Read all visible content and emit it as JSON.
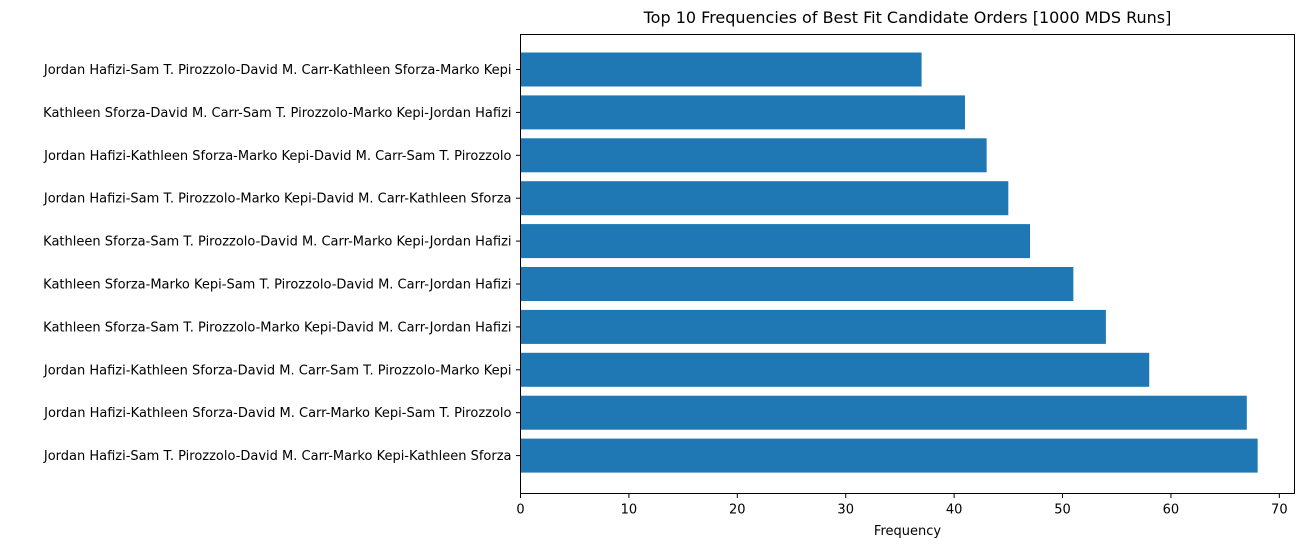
{
  "chart_data": {
    "type": "bar",
    "orientation": "horizontal",
    "title": "Top 10 Frequencies of Best Fit Candidate Orders [1000 MDS Runs]",
    "xlabel": "Frequency",
    "ylabel": "",
    "xlim": [
      0,
      71.4
    ],
    "x_ticks": [
      0,
      10,
      20,
      30,
      40,
      50,
      60,
      70
    ],
    "grid": false,
    "legend": "none",
    "bar_color": "#1f77b4",
    "categories": [
      "Jordan Hafizi-Sam T. Pirozzolo-David M. Carr-Kathleen Sforza-Marko Kepi",
      "Kathleen Sforza-David M. Carr-Sam T. Pirozzolo-Marko Kepi-Jordan Hafizi",
      "Jordan Hafizi-Kathleen Sforza-Marko Kepi-David M. Carr-Sam T. Pirozzolo",
      "Jordan Hafizi-Sam T. Pirozzolo-Marko Kepi-David M. Carr-Kathleen Sforza",
      "Kathleen Sforza-Sam T. Pirozzolo-David M. Carr-Marko Kepi-Jordan Hafizi",
      "Kathleen Sforza-Marko Kepi-Sam T. Pirozzolo-David M. Carr-Jordan Hafizi",
      "Kathleen Sforza-Sam T. Pirozzolo-Marko Kepi-David M. Carr-Jordan Hafizi",
      "Jordan Hafizi-Kathleen Sforza-David M. Carr-Sam T. Pirozzolo-Marko Kepi",
      "Jordan Hafizi-Kathleen Sforza-David M. Carr-Marko Kepi-Sam T. Pirozzolo",
      "Jordan Hafizi-Sam T. Pirozzolo-David M. Carr-Marko Kepi-Kathleen Sforza"
    ],
    "values": [
      37,
      41,
      43,
      45,
      47,
      51,
      54,
      58,
      67,
      68
    ]
  }
}
